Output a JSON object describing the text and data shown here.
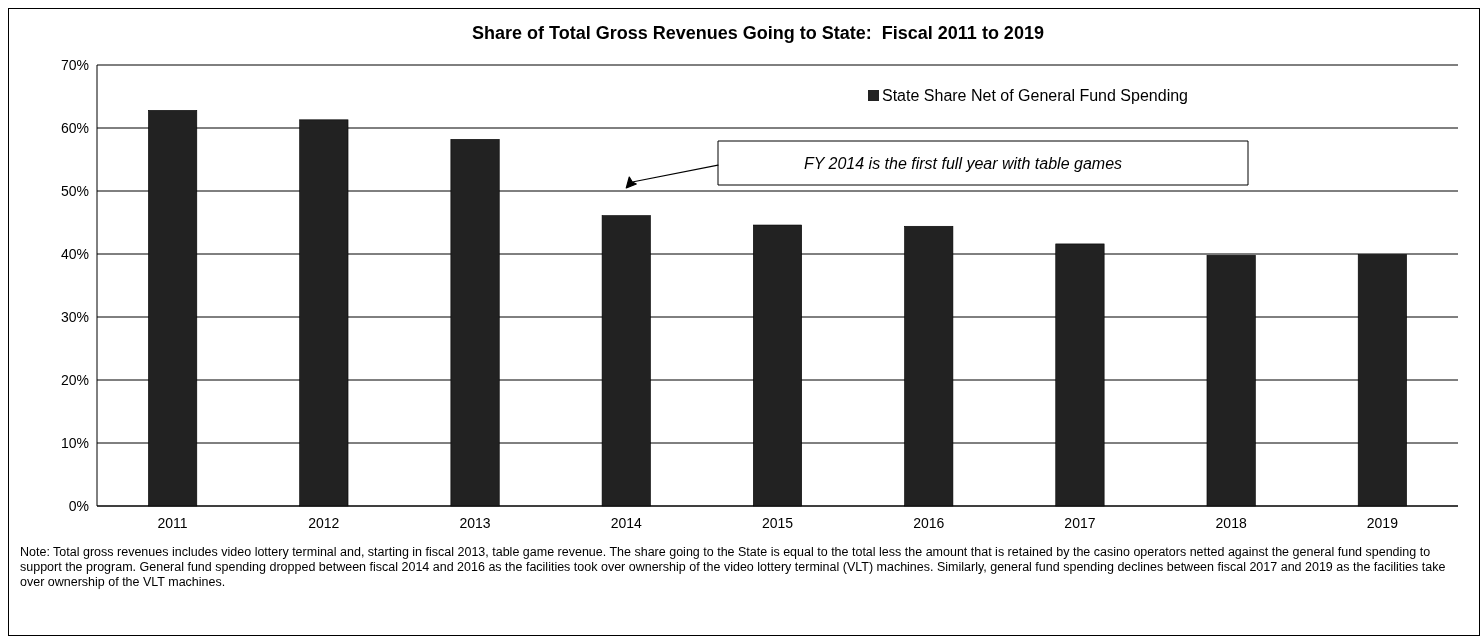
{
  "chart_data": {
    "type": "bar",
    "title": "Share of Total Gross Revenues Going to State:  Fiscal 2011 to 2019",
    "categories": [
      "2011",
      "2012",
      "2013",
      "2014",
      "2015",
      "2016",
      "2017",
      "2018",
      "2019"
    ],
    "series": [
      {
        "name": "State Share Net of General Fund Spending",
        "color": "#222222",
        "values": [
          62.8,
          61.3,
          58.2,
          46.1,
          44.6,
          44.4,
          41.6,
          39.8,
          39.9
        ]
      }
    ],
    "ylim": [
      0,
      70
    ],
    "yticks": [
      {
        "value": 0,
        "label": "0%"
      },
      {
        "value": 10,
        "label": "10%"
      },
      {
        "value": 20,
        "label": "20%"
      },
      {
        "value": 30,
        "label": "30%"
      },
      {
        "value": 40,
        "label": "40%"
      },
      {
        "value": 50,
        "label": "50%"
      },
      {
        "value": 60,
        "label": "60%"
      },
      {
        "value": 70,
        "label": "70%"
      }
    ],
    "grid": "y",
    "legend": "top right",
    "annotations": [
      "FY 2014 is the first full year with table games",
      "Note:  Total gross revenues includes video lottery terminal and, starting in fiscal 2013, table game revenue.  The share going to the State is equal to the total less the amount that is retained by the casino operators netted against the general fund spending to support the program.  General fund spending dropped between fiscal 2014 and 2016 as the facilities took over ownership of the video lottery terminal (VLT) machines.  Similarly, general fund spending declines between fiscal 2017 and 2019 as the facilities take over ownership of the VLT machines."
    ]
  }
}
